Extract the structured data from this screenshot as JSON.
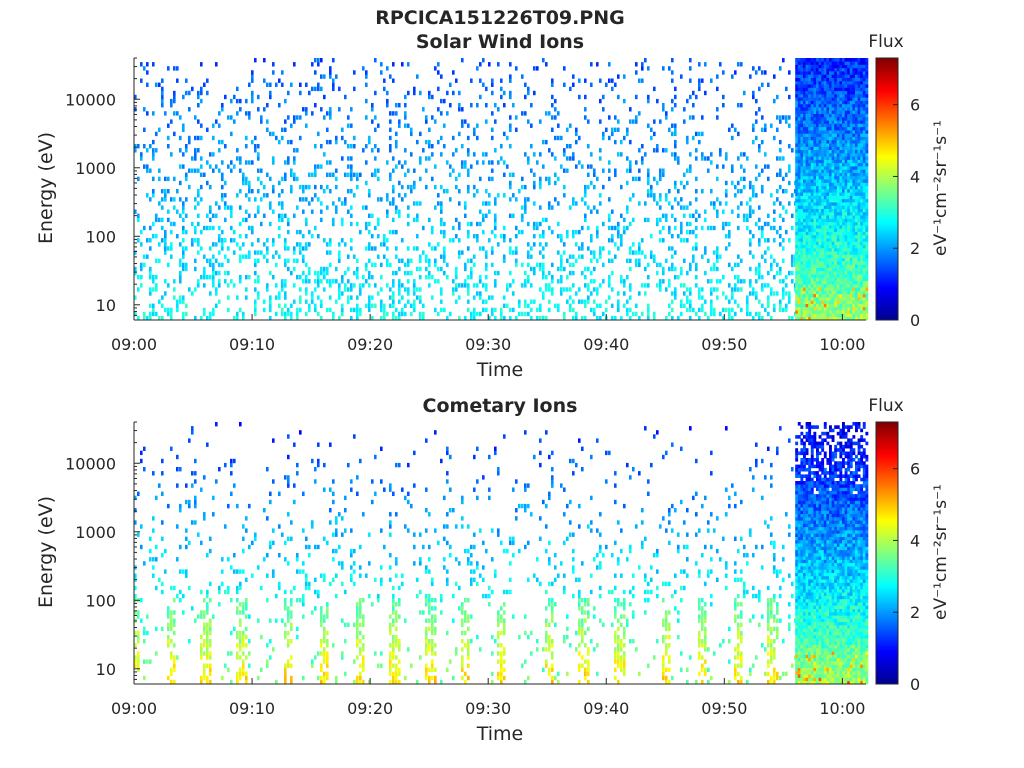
{
  "figure_title": "RPCICA151226T09.PNG",
  "colors": {
    "axis": "#262626",
    "colormap": [
      "#00008f",
      "#0000ff",
      "#0080ff",
      "#00ffff",
      "#80ff80",
      "#ffff00",
      "#ff8000",
      "#ff0000",
      "#800000"
    ]
  },
  "chart_data": [
    {
      "type": "heatmap",
      "title": "Solar Wind Ions",
      "xlabel": "Time",
      "ylabel": "Energy (eV)",
      "x_range": [
        "09:00",
        "10:02"
      ],
      "x_ticks": [
        "09:00",
        "09:10",
        "09:20",
        "09:30",
        "09:40",
        "09:50",
        "10:00"
      ],
      "y_scale": "log",
      "y_range": [
        6,
        40000
      ],
      "y_ticks": [
        "10",
        "100",
        "1000",
        "10000"
      ],
      "colorbar": {
        "label": "Flux",
        "unit": "eV⁻¹cm⁻²sr⁻¹s⁻¹",
        "range": [
          0,
          7.3
        ],
        "ticks": [
          "0",
          "2",
          "4",
          "6"
        ]
      },
      "sparse_region": {
        "from": "09:00",
        "to": "09:56",
        "high_energy_flux": 1.5,
        "low_energy_flux": 2.8,
        "density_high": 0.1,
        "density_low": 0.33
      },
      "dense_region": {
        "from": "09:56",
        "to": "10:02",
        "flux_at_top": 1.2,
        "flux_at_bottom": 3.9
      }
    },
    {
      "type": "heatmap",
      "title": "Cometary Ions",
      "xlabel": "Time",
      "ylabel": "Energy (eV)",
      "x_range": [
        "09:00",
        "10:02"
      ],
      "x_ticks": [
        "09:00",
        "09:10",
        "09:20",
        "09:30",
        "09:40",
        "09:50",
        "10:00"
      ],
      "y_scale": "log",
      "y_range": [
        6,
        40000
      ],
      "y_ticks": [
        "10",
        "100",
        "1000",
        "10000"
      ],
      "colorbar": {
        "label": "Flux",
        "unit": "eV⁻¹cm⁻²sr⁻¹s⁻¹",
        "range": [
          0,
          7.3
        ],
        "ticks": [
          "0",
          "2",
          "4",
          "6"
        ]
      },
      "sparse_region": {
        "from": "09:00",
        "to": "09:56",
        "high_energy_flux": 1.2,
        "low_energy_flux": 3.6,
        "density_high": 0.015,
        "density_low": 0.3
      },
      "burst_times": [
        "09:00",
        "09:03",
        "09:06",
        "09:09",
        "09:13",
        "09:16",
        "09:19",
        "09:22",
        "09:25",
        "09:28",
        "09:31",
        "09:35",
        "09:38",
        "09:41",
        "09:45",
        "09:48",
        "09:51",
        "09:54"
      ],
      "dense_region": {
        "from": "09:56",
        "to": "10:02",
        "flux_at_top": 0.8,
        "flux_at_bottom": 4.0
      }
    }
  ]
}
